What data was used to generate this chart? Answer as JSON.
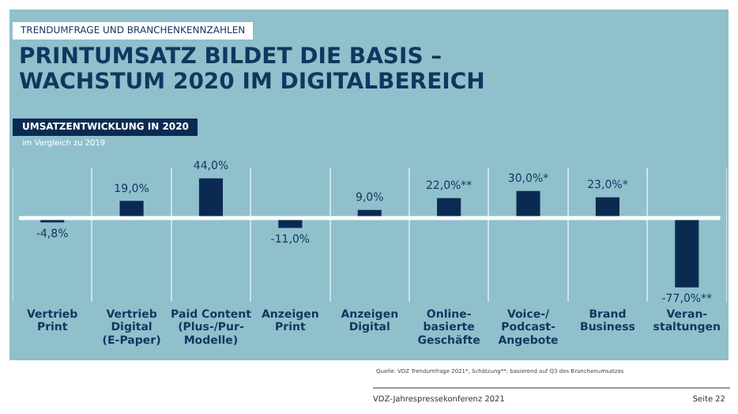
{
  "chart_data": {
    "type": "bar",
    "title": "PRINTUMSATZ BILDET DIE BASIS – WACHSTUM 2020 IM DIGITALBEREICH",
    "subtitle": "UMSATZENTWICKLUNG IN 2020",
    "annotations": [
      "TRENDUMFRAGE UND BRANCHENKENNZAHLEN",
      "im Vergleich zu 2019",
      "Quelle: VDZ Trendumfrage 2021*, Schätzung**; basierend auf Q3 des Branchenumsatzes",
      "VDZ-Jahrespressekonferenz 2021",
      "Seite 22"
    ],
    "categories": [
      "Vertrieb\nPrint",
      "Vertrieb\nDigital\n(E-Paper)",
      "Paid Content\n(Plus-/Pur-\nModelle)",
      "Anzeigen\nPrint",
      "Anzeigen\nDigital",
      "Online-\nbasierte\nGeschäfte",
      "Voice-/\nPodcast-\nAngebote",
      "Brand\nBusiness",
      "Veran-\nstaltungen"
    ],
    "values": [
      -4.8,
      19.0,
      44.0,
      -11.0,
      9.0,
      22.0,
      30.0,
      23.0,
      -77.0
    ],
    "value_labels": [
      "-4,8%",
      "19,0%",
      "44,0%",
      "-11,0%",
      "9,0%",
      "22,0%**",
      "30,0%*",
      "23,0%*",
      "-77,0%**"
    ],
    "color": "#0b2a52",
    "grid": "x",
    "legend": false
  }
}
